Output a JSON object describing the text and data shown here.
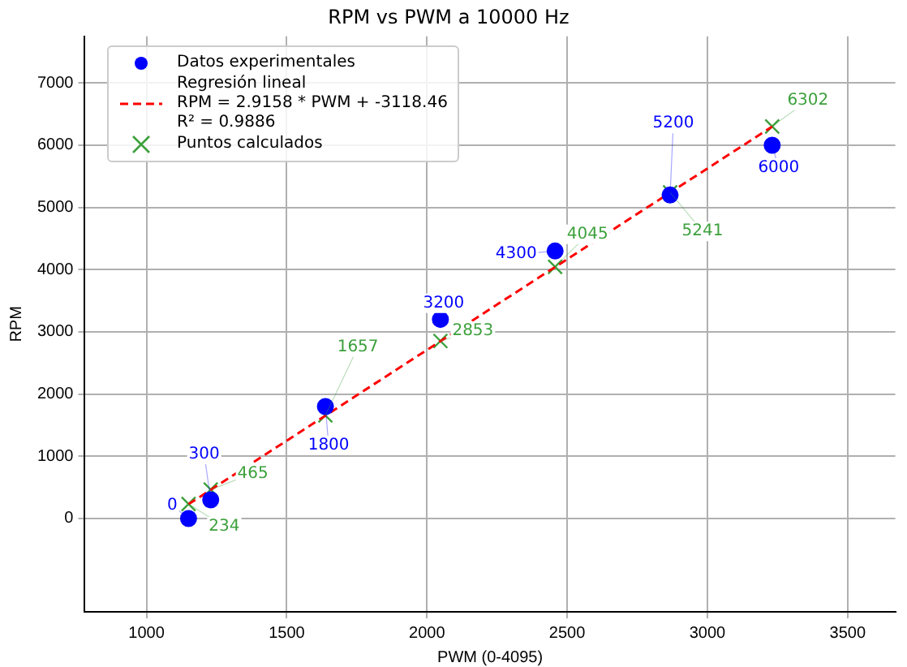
{
  "chart_data": {
    "type": "scatter",
    "title": "RPM vs PWM a 10000 Hz",
    "xlabel": "PWM (0-4095)",
    "ylabel": "RPM",
    "xlim": [
      780,
      3670
    ],
    "ylim": [
      -1500,
      7750
    ],
    "xticks": [
      1000,
      1500,
      2000,
      2500,
      3000,
      3500
    ],
    "yticks": [
      0,
      1000,
      2000,
      3000,
      4000,
      5000,
      6000,
      7000
    ],
    "grid": true,
    "legend": "top left",
    "series": [
      {
        "name": "Datos experimentales",
        "marker": "circle",
        "color": "#0000ff",
        "x": [
          1150,
          1229,
          1638,
          2048,
          2457,
          2867,
          3231
        ],
        "values": [
          0,
          300,
          1800,
          3200,
          4300,
          5200,
          6000
        ],
        "value_labels": [
          "0",
          "300",
          "1800",
          "3200",
          "4300",
          "5200",
          "6000"
        ]
      },
      {
        "name": "Regresión lineal\nRPM = 2.9158 * PWM + -3118.46\nR² = 0.9886",
        "type": "line",
        "marker": "none",
        "line_style": "dashed",
        "color": "#ff0000",
        "x": [
          1150,
          3231
        ],
        "values": [
          230,
          6300
        ]
      },
      {
        "name": "Puntos calculados",
        "marker": "cross",
        "color": "#3ca03c",
        "x": [
          1150,
          1229,
          1638,
          2048,
          2457,
          2867,
          3231
        ],
        "values": [
          234,
          465,
          1657,
          2853,
          4045,
          5241,
          6302
        ],
        "value_labels": [
          "234",
          "465",
          "1657",
          "2853",
          "4045",
          "5241",
          "6302"
        ]
      }
    ]
  }
}
